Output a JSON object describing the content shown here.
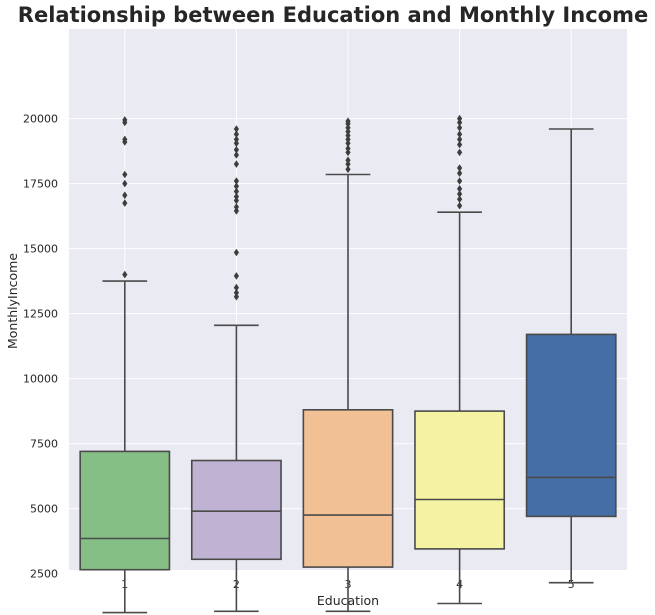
{
  "chart_data": {
    "type": "box",
    "title": "Relationship between Education and Monthly Income",
    "xlabel": "Education",
    "ylabel": "MonthlyIncome",
    "ylim": [
      0,
      21000
    ],
    "yticks": [
      2500,
      5000,
      7500,
      10000,
      12500,
      15000,
      17500,
      20000
    ],
    "grid": true,
    "categories": [
      "1",
      "2",
      "3",
      "4",
      "5"
    ],
    "boxes": [
      {
        "category": "1",
        "color": "#86bf86",
        "whisker_low": 1000,
        "q1": 2650,
        "median": 3850,
        "q3": 7200,
        "whisker_high": 13750,
        "outliers": [
          14000,
          16750,
          17050,
          17500,
          17850,
          19100,
          19200,
          19850,
          19950
        ]
      },
      {
        "category": "2",
        "color": "#bfb2d3",
        "whisker_low": 1050,
        "q1": 3050,
        "median": 4900,
        "q3": 6850,
        "whisker_high": 12050,
        "outliers": [
          13150,
          13300,
          13500,
          13950,
          14850,
          16450,
          16600,
          16850,
          17000,
          17200,
          17400,
          17600,
          18250,
          18600,
          18800,
          19050,
          19200,
          19400,
          19600
        ]
      },
      {
        "category": "3",
        "color": "#f1c094",
        "whisker_low": 1050,
        "q1": 2750,
        "median": 4750,
        "q3": 8800,
        "whisker_high": 17850,
        "outliers": [
          18050,
          18250,
          18400,
          18700,
          18850,
          19050,
          19200,
          19350,
          19500,
          19650,
          19800,
          19900
        ]
      },
      {
        "category": "4",
        "color": "#f3f3a3",
        "whisker_low": 1350,
        "q1": 3450,
        "median": 5350,
        "q3": 8750,
        "whisker_high": 16400,
        "outliers": [
          16650,
          16900,
          17100,
          17300,
          17600,
          17900,
          18100,
          18700,
          19000,
          19200,
          19400,
          19650,
          19850,
          20000
        ]
      },
      {
        "category": "5",
        "color": "#446ea5",
        "whisker_low": 2150,
        "q1": 4700,
        "median": 6200,
        "q3": 11700,
        "whisker_high": 19600,
        "outliers": []
      }
    ]
  }
}
